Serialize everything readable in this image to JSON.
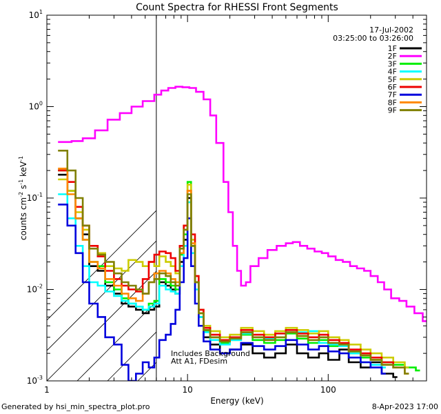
{
  "chart_data": {
    "type": "line",
    "title": "Count Spectra for RHESSI Front Segments",
    "xlabel": "Energy (keV)",
    "ylabel": "counts cm^-2 s^-1 keV^-1",
    "xscale": "log",
    "yscale": "log",
    "xlim": [
      1,
      500
    ],
    "ylim": [
      0.001,
      10
    ],
    "x_ticks": [
      {
        "value": 1,
        "label": "1"
      },
      {
        "value": 10,
        "label": "10"
      },
      {
        "value": 100,
        "label": "100"
      }
    ],
    "y_ticks": [
      {
        "value": 0.001,
        "mantissa": "10",
        "exp": "-3"
      },
      {
        "value": 0.01,
        "mantissa": "10",
        "exp": "-2"
      },
      {
        "value": 0.1,
        "mantissa": "10",
        "exp": "-1"
      },
      {
        "value": 1,
        "mantissa": "10",
        "exp": "0"
      },
      {
        "value": 10,
        "mantissa": "10",
        "exp": "1"
      }
    ],
    "date": "17-Jul-2002",
    "time_range": "03:25:00 to 03:26:00",
    "excluded_region_below_keV": 6,
    "annotations": [
      "Includes Background",
      "Att A1, FDesim"
    ],
    "series": [
      {
        "name": "1F",
        "color": "#000000",
        "x": [
          1.2,
          1.4,
          1.6,
          1.8,
          2.0,
          2.3,
          2.6,
          3.0,
          3.4,
          3.8,
          4.3,
          4.8,
          5.3,
          5.8,
          6.3,
          7.0,
          7.6,
          8.2,
          8.8,
          9.4,
          10.0,
          10.6,
          11.3,
          12.0,
          13.0,
          14.5,
          17,
          20,
          24,
          29,
          35,
          42,
          50,
          60,
          72,
          86,
          100,
          120,
          140,
          170,
          200,
          240,
          290
        ],
        "y": [
          0.18,
          0.12,
          0.06,
          0.04,
          0.018,
          0.016,
          0.011,
          0.009,
          0.007,
          0.0065,
          0.006,
          0.0055,
          0.006,
          0.0065,
          0.012,
          0.011,
          0.01,
          0.009,
          0.02,
          0.035,
          0.1,
          0.03,
          0.012,
          0.005,
          0.003,
          0.0025,
          0.002,
          0.0022,
          0.0025,
          0.002,
          0.0018,
          0.002,
          0.0025,
          0.002,
          0.0018,
          0.002,
          0.0017,
          0.0022,
          0.0016,
          0.0014,
          0.0016,
          0.0012,
          0.0011
        ]
      },
      {
        "name": "2F",
        "color": "#ff00ff",
        "x": [
          1.2,
          1.5,
          1.8,
          2.2,
          2.7,
          3.3,
          4.0,
          4.8,
          5.8,
          6.5,
          7.3,
          8.2,
          9.2,
          10.3,
          11.5,
          13,
          14.5,
          16,
          18,
          19.5,
          21,
          22.5,
          24,
          26,
          28,
          32,
          37,
          43,
          50,
          56,
          63,
          71,
          80,
          90,
          100,
          113,
          127,
          143,
          160,
          180,
          200,
          225,
          250,
          280,
          320,
          360,
          410,
          470
        ],
        "y": [
          0.41,
          0.42,
          0.45,
          0.55,
          0.72,
          0.85,
          1.0,
          1.15,
          1.35,
          1.5,
          1.6,
          1.65,
          1.63,
          1.6,
          1.45,
          1.2,
          0.8,
          0.4,
          0.15,
          0.07,
          0.03,
          0.016,
          0.011,
          0.012,
          0.018,
          0.022,
          0.027,
          0.03,
          0.032,
          0.033,
          0.03,
          0.028,
          0.026,
          0.025,
          0.023,
          0.021,
          0.02,
          0.018,
          0.017,
          0.016,
          0.014,
          0.012,
          0.01,
          0.008,
          0.0075,
          0.0065,
          0.0055,
          0.0045
        ]
      },
      {
        "name": "3F",
        "color": "#00ee00",
        "x": [
          1.2,
          1.4,
          1.6,
          1.8,
          2.0,
          2.3,
          2.6,
          3.0,
          3.4,
          3.8,
          4.3,
          4.8,
          5.3,
          5.8,
          6.3,
          7.0,
          7.6,
          8.2,
          8.8,
          9.4,
          10.0,
          10.6,
          11.3,
          12.0,
          13.0,
          14.5,
          17,
          20,
          24,
          29,
          35,
          42,
          50,
          60,
          72,
          86,
          100,
          120,
          140,
          170,
          200,
          240,
          290,
          350,
          420
        ],
        "y": [
          0.2,
          0.12,
          0.06,
          0.035,
          0.02,
          0.018,
          0.012,
          0.01,
          0.008,
          0.007,
          0.0065,
          0.006,
          0.007,
          0.0075,
          0.013,
          0.012,
          0.011,
          0.01,
          0.024,
          0.04,
          0.15,
          0.03,
          0.012,
          0.0055,
          0.0035,
          0.003,
          0.0026,
          0.0028,
          0.0032,
          0.0028,
          0.0026,
          0.0028,
          0.0033,
          0.0029,
          0.0026,
          0.0028,
          0.0024,
          0.0025,
          0.002,
          0.0018,
          0.0017,
          0.0016,
          0.0015,
          0.0014,
          0.0013
        ]
      },
      {
        "name": "4F",
        "color": "#00ffff",
        "x": [
          1.2,
          1.4,
          1.6,
          1.8,
          2.0,
          2.3,
          2.6,
          3.0,
          3.4,
          3.8,
          4.3,
          4.8,
          5.3,
          5.8,
          6.3,
          7.0,
          7.6,
          8.2,
          8.8,
          9.4,
          10.0,
          10.6,
          11.3,
          12.0,
          13.0,
          14.5,
          17,
          20,
          24,
          29,
          35,
          42,
          50,
          60,
          72,
          86,
          100,
          120,
          140,
          170,
          200,
          240
        ],
        "y": [
          0.11,
          0.06,
          0.03,
          0.018,
          0.012,
          0.011,
          0.0095,
          0.0085,
          0.0075,
          0.007,
          0.0065,
          0.006,
          0.0065,
          0.007,
          0.011,
          0.01,
          0.0095,
          0.009,
          0.018,
          0.03,
          0.09,
          0.025,
          0.01,
          0.005,
          0.0034,
          0.0028,
          0.0025,
          0.0028,
          0.0033,
          0.003,
          0.0029,
          0.0033,
          0.0036,
          0.0034,
          0.0035,
          0.0026,
          0.0025,
          0.0024,
          0.002,
          0.0016,
          0.0015,
          0.0014
        ]
      },
      {
        "name": "5F",
        "color": "#cccc00",
        "x": [
          1.2,
          1.4,
          1.6,
          1.8,
          2.0,
          2.3,
          2.6,
          3.0,
          3.4,
          3.8,
          4.3,
          4.8,
          5.3,
          5.8,
          6.3,
          7.0,
          7.6,
          8.2,
          8.8,
          9.4,
          10.0,
          10.6,
          11.3,
          12.0,
          13.0,
          14.5,
          17,
          20,
          24,
          29,
          35,
          42,
          50,
          60,
          72,
          86,
          100,
          120,
          140,
          170,
          200,
          240,
          290,
          350
        ],
        "y": [
          0.16,
          0.12,
          0.07,
          0.045,
          0.03,
          0.025,
          0.018,
          0.017,
          0.016,
          0.021,
          0.02,
          0.018,
          0.02,
          0.018,
          0.023,
          0.02,
          0.018,
          0.015,
          0.03,
          0.05,
          0.14,
          0.035,
          0.014,
          0.006,
          0.004,
          0.0035,
          0.003,
          0.0032,
          0.0038,
          0.0035,
          0.0032,
          0.0035,
          0.0038,
          0.0036,
          0.0033,
          0.0035,
          0.003,
          0.0028,
          0.0025,
          0.0022,
          0.002,
          0.0018,
          0.0016,
          0.0014
        ]
      },
      {
        "name": "6F",
        "color": "#ee0000",
        "x": [
          1.2,
          1.4,
          1.6,
          1.8,
          2.0,
          2.3,
          2.6,
          3.0,
          3.4,
          3.8,
          4.3,
          4.8,
          5.3,
          5.8,
          6.3,
          7.0,
          7.6,
          8.2,
          8.8,
          9.4,
          10.0,
          10.6,
          11.3,
          12.0,
          13.0,
          14.5,
          17,
          20,
          24,
          29,
          35,
          42,
          50,
          60,
          72,
          86,
          100,
          120,
          140,
          170,
          200,
          240,
          290
        ],
        "y": [
          0.2,
          0.15,
          0.08,
          0.05,
          0.03,
          0.023,
          0.016,
          0.013,
          0.011,
          0.01,
          0.0095,
          0.013,
          0.02,
          0.024,
          0.026,
          0.025,
          0.022,
          0.016,
          0.03,
          0.05,
          0.12,
          0.04,
          0.014,
          0.006,
          0.0038,
          0.0032,
          0.0028,
          0.003,
          0.0036,
          0.0032,
          0.003,
          0.0033,
          0.0036,
          0.0033,
          0.003,
          0.0032,
          0.0028,
          0.0026,
          0.0022,
          0.002,
          0.0018,
          0.0016,
          0.0014
        ]
      },
      {
        "name": "7F",
        "color": "#0000dd",
        "x": [
          1.2,
          1.4,
          1.6,
          1.8,
          2.0,
          2.3,
          2.6,
          3.0,
          3.4,
          3.8,
          4.3,
          4.8,
          5.3,
          5.8,
          6.3,
          7.0,
          7.6,
          8.2,
          8.8,
          9.4,
          10.0,
          10.6,
          11.3,
          12.0,
          13.0,
          14.5,
          17,
          20,
          24,
          29,
          35,
          42,
          50,
          60,
          72,
          86,
          100,
          120,
          140,
          170,
          200,
          240
        ],
        "y": [
          0.085,
          0.05,
          0.025,
          0.012,
          0.007,
          0.005,
          0.003,
          0.0025,
          0.0015,
          0.001,
          0.0012,
          0.0016,
          0.0014,
          0.0018,
          0.0028,
          0.0032,
          0.0042,
          0.006,
          0.012,
          0.022,
          0.06,
          0.018,
          0.007,
          0.004,
          0.0027,
          0.0022,
          0.002,
          0.0022,
          0.0026,
          0.0024,
          0.0022,
          0.0024,
          0.0028,
          0.0025,
          0.0022,
          0.0024,
          0.0021,
          0.002,
          0.0018,
          0.0016,
          0.0014,
          0.0012
        ]
      },
      {
        "name": "8F",
        "color": "#ff8800",
        "x": [
          1.2,
          1.4,
          1.6,
          1.8,
          2.0,
          2.3,
          2.6,
          3.0,
          3.4,
          3.8,
          4.3,
          4.8,
          5.3,
          5.8,
          6.3,
          7.0,
          7.6,
          8.2,
          8.8,
          9.4,
          10.0,
          10.6,
          11.3,
          12.0,
          13.0,
          14.5,
          17,
          20,
          24,
          29,
          35,
          42,
          50,
          60,
          72,
          86,
          100,
          120,
          140,
          170,
          200,
          240,
          290,
          350
        ],
        "y": [
          0.21,
          0.11,
          0.06,
          0.035,
          0.02,
          0.017,
          0.013,
          0.011,
          0.009,
          0.008,
          0.0075,
          0.009,
          0.012,
          0.015,
          0.016,
          0.015,
          0.013,
          0.012,
          0.025,
          0.045,
          0.12,
          0.032,
          0.012,
          0.0055,
          0.0036,
          0.003,
          0.0027,
          0.0029,
          0.0034,
          0.003,
          0.0028,
          0.003,
          0.0034,
          0.0031,
          0.0028,
          0.003,
          0.0026,
          0.0025,
          0.0021,
          0.0019,
          0.0017,
          0.0015,
          0.0014,
          0.0012
        ]
      },
      {
        "name": "9F",
        "color": "#808000",
        "x": [
          1.2,
          1.4,
          1.6,
          1.8,
          2.0,
          2.3,
          2.6,
          3.0,
          3.4,
          3.8,
          4.3,
          4.8,
          5.3,
          5.8,
          6.3,
          7.0,
          7.6,
          8.2,
          8.8,
          9.4,
          10.0,
          10.6,
          11.3,
          12.0,
          13.0,
          14.5,
          17,
          20,
          24,
          29,
          35,
          42,
          50,
          60,
          72,
          86,
          100,
          120,
          140,
          170,
          200,
          240,
          290,
          350
        ],
        "y": [
          0.33,
          0.2,
          0.1,
          0.05,
          0.028,
          0.024,
          0.02,
          0.015,
          0.012,
          0.011,
          0.01,
          0.009,
          0.012,
          0.013,
          0.015,
          0.014,
          0.012,
          0.011,
          0.028,
          0.045,
          0.11,
          0.03,
          0.012,
          0.0055,
          0.0036,
          0.003,
          0.0027,
          0.0029,
          0.0034,
          0.003,
          0.0028,
          0.003,
          0.0034,
          0.0031,
          0.0028,
          0.003,
          0.0026,
          0.0025,
          0.0021,
          0.0019,
          0.0017,
          0.0015,
          0.0014,
          0.0012
        ]
      }
    ]
  },
  "footer": {
    "left": "Generated by hsi_min_spectra_plot.pro",
    "right": "8-Apr-2023 17:00"
  }
}
